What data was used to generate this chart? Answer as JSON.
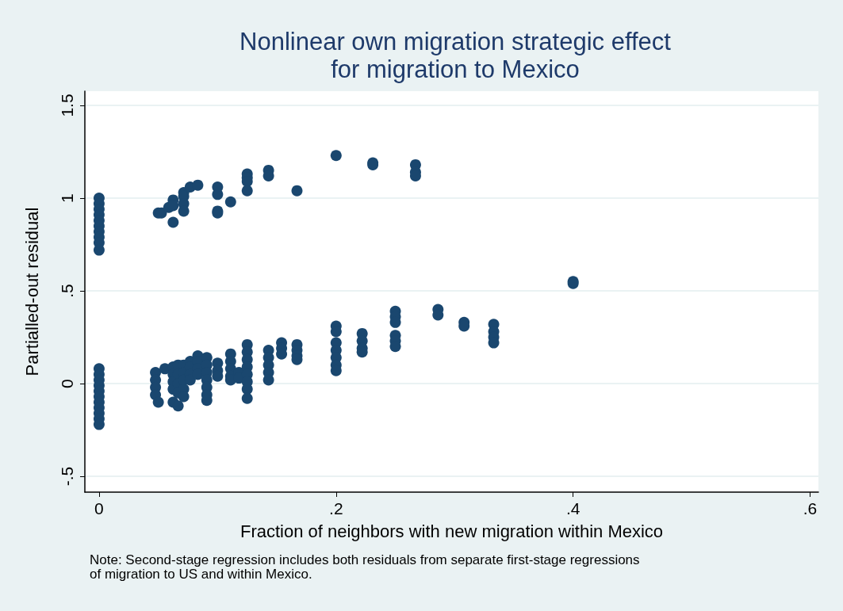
{
  "chart_data": {
    "type": "scatter",
    "title": "Nonlinear own migration strategic effect\nfor migration to Mexico",
    "xlabel": "Fraction of neighbors with new migration within Mexico",
    "ylabel": "Partialled-out residual",
    "annotations": [
      "Note: Second-stage regression includes both residuals from separate first-stage regressions\nof migration to US and within Mexico."
    ],
    "x": [
      0,
      0,
      0,
      0,
      0,
      0,
      0,
      0,
      0,
      0,
      0.05,
      0.0526,
      0.0588,
      0.0625,
      0.0625,
      0.0625,
      0.0714,
      0.0714,
      0.0714,
      0.0714,
      0.0769,
      0.0833,
      0.1,
      0.1,
      0.1,
      0.1,
      0.111,
      0.125,
      0.125,
      0.125,
      0.125,
      0.143,
      0.143,
      0.167,
      0.2,
      0.231,
      0.231,
      0.267,
      0.267,
      0.267,
      0.4,
      0.4,
      0,
      0,
      0,
      0,
      0,
      0,
      0,
      0,
      0,
      0,
      0,
      0.0476,
      0.0476,
      0.0476,
      0.0476,
      0.05,
      0.0556,
      0.0625,
      0.0625,
      0.0625,
      0.0625,
      0.0625,
      0.0667,
      0.0667,
      0.0667,
      0.0667,
      0.0667,
      0.0714,
      0.0714,
      0.0714,
      0.0714,
      0.0714,
      0.0769,
      0.0769,
      0.0769,
      0.0769,
      0.0833,
      0.0833,
      0.0833,
      0.0833,
      0.0909,
      0.0909,
      0.0909,
      0.0909,
      0.0909,
      0.0909,
      0.0909,
      0.1,
      0.1,
      0.1,
      0.111,
      0.111,
      0.111,
      0.111,
      0.111,
      0.118,
      0.118,
      0.125,
      0.125,
      0.125,
      0.125,
      0.125,
      0.125,
      0.125,
      0.125,
      0.143,
      0.143,
      0.143,
      0.143,
      0.143,
      0.154,
      0.154,
      0.154,
      0.167,
      0.167,
      0.167,
      0.167,
      0.2,
      0.2,
      0.2,
      0.2,
      0.2,
      0.2,
      0.2,
      0.222,
      0.222,
      0.222,
      0.222,
      0.25,
      0.25,
      0.25,
      0.25,
      0.25,
      0.25,
      0.286,
      0.286,
      0.308,
      0.308,
      0.333,
      0.333,
      0.333,
      0.333
    ],
    "values": [
      1.0,
      0.97,
      0.94,
      0.91,
      0.88,
      0.85,
      0.82,
      0.79,
      0.76,
      0.72,
      0.92,
      0.92,
      0.95,
      0.99,
      0.96,
      0.87,
      1.03,
      1.01,
      0.97,
      0.93,
      1.06,
      1.07,
      1.06,
      1.02,
      0.93,
      0.92,
      0.98,
      1.13,
      1.11,
      1.09,
      1.04,
      1.15,
      1.12,
      1.04,
      1.23,
      1.19,
      1.18,
      1.18,
      1.14,
      1.12,
      0.55,
      0.54,
      0.08,
      0.05,
      0.02,
      -0.01,
      -0.04,
      -0.07,
      -0.1,
      -0.13,
      -0.16,
      -0.19,
      -0.22,
      0.06,
      0.02,
      -0.02,
      -0.06,
      -0.1,
      0.08,
      0.09,
      0.05,
      0.01,
      -0.03,
      -0.1,
      0.1,
      0.05,
      0.0,
      -0.05,
      -0.12,
      0.1,
      0.06,
      0.02,
      -0.03,
      -0.07,
      0.12,
      0.09,
      0.05,
      0.02,
      0.15,
      0.12,
      0.08,
      0.05,
      0.14,
      0.1,
      0.06,
      0.02,
      -0.02,
      -0.06,
      -0.09,
      0.11,
      0.07,
      0.04,
      0.16,
      0.12,
      0.08,
      0.04,
      0.02,
      0.06,
      0.03,
      0.21,
      0.17,
      0.13,
      0.09,
      0.05,
      0.01,
      -0.03,
      -0.08,
      0.18,
      0.14,
      0.1,
      0.06,
      0.02,
      0.22,
      0.19,
      0.16,
      0.21,
      0.18,
      0.15,
      0.13,
      0.31,
      0.28,
      0.22,
      0.18,
      0.14,
      0.1,
      0.07,
      0.27,
      0.23,
      0.19,
      0.17,
      0.39,
      0.36,
      0.33,
      0.26,
      0.23,
      0.2,
      0.4,
      0.37,
      0.33,
      0.31,
      0.32,
      0.28,
      0.25,
      0.22
    ],
    "color": "#1a476f",
    "marker": "circle",
    "grid": "y",
    "xlim": [
      -0.012,
      0.607
    ],
    "xticks": [
      0,
      {
        "value": 0.2,
        "label": ".2"
      },
      {
        "value": 0.4,
        "label": ".4"
      },
      {
        "value": 0.6,
        "label": ".6"
      }
    ],
    "ylim": [
      -0.585,
      1.577
    ],
    "yticks": [
      {
        "value": -0.5,
        "label": "-.5"
      },
      0,
      {
        "value": 0.5,
        "label": ".5"
      },
      1,
      {
        "value": 1.5,
        "label": "1.5"
      }
    ]
  }
}
